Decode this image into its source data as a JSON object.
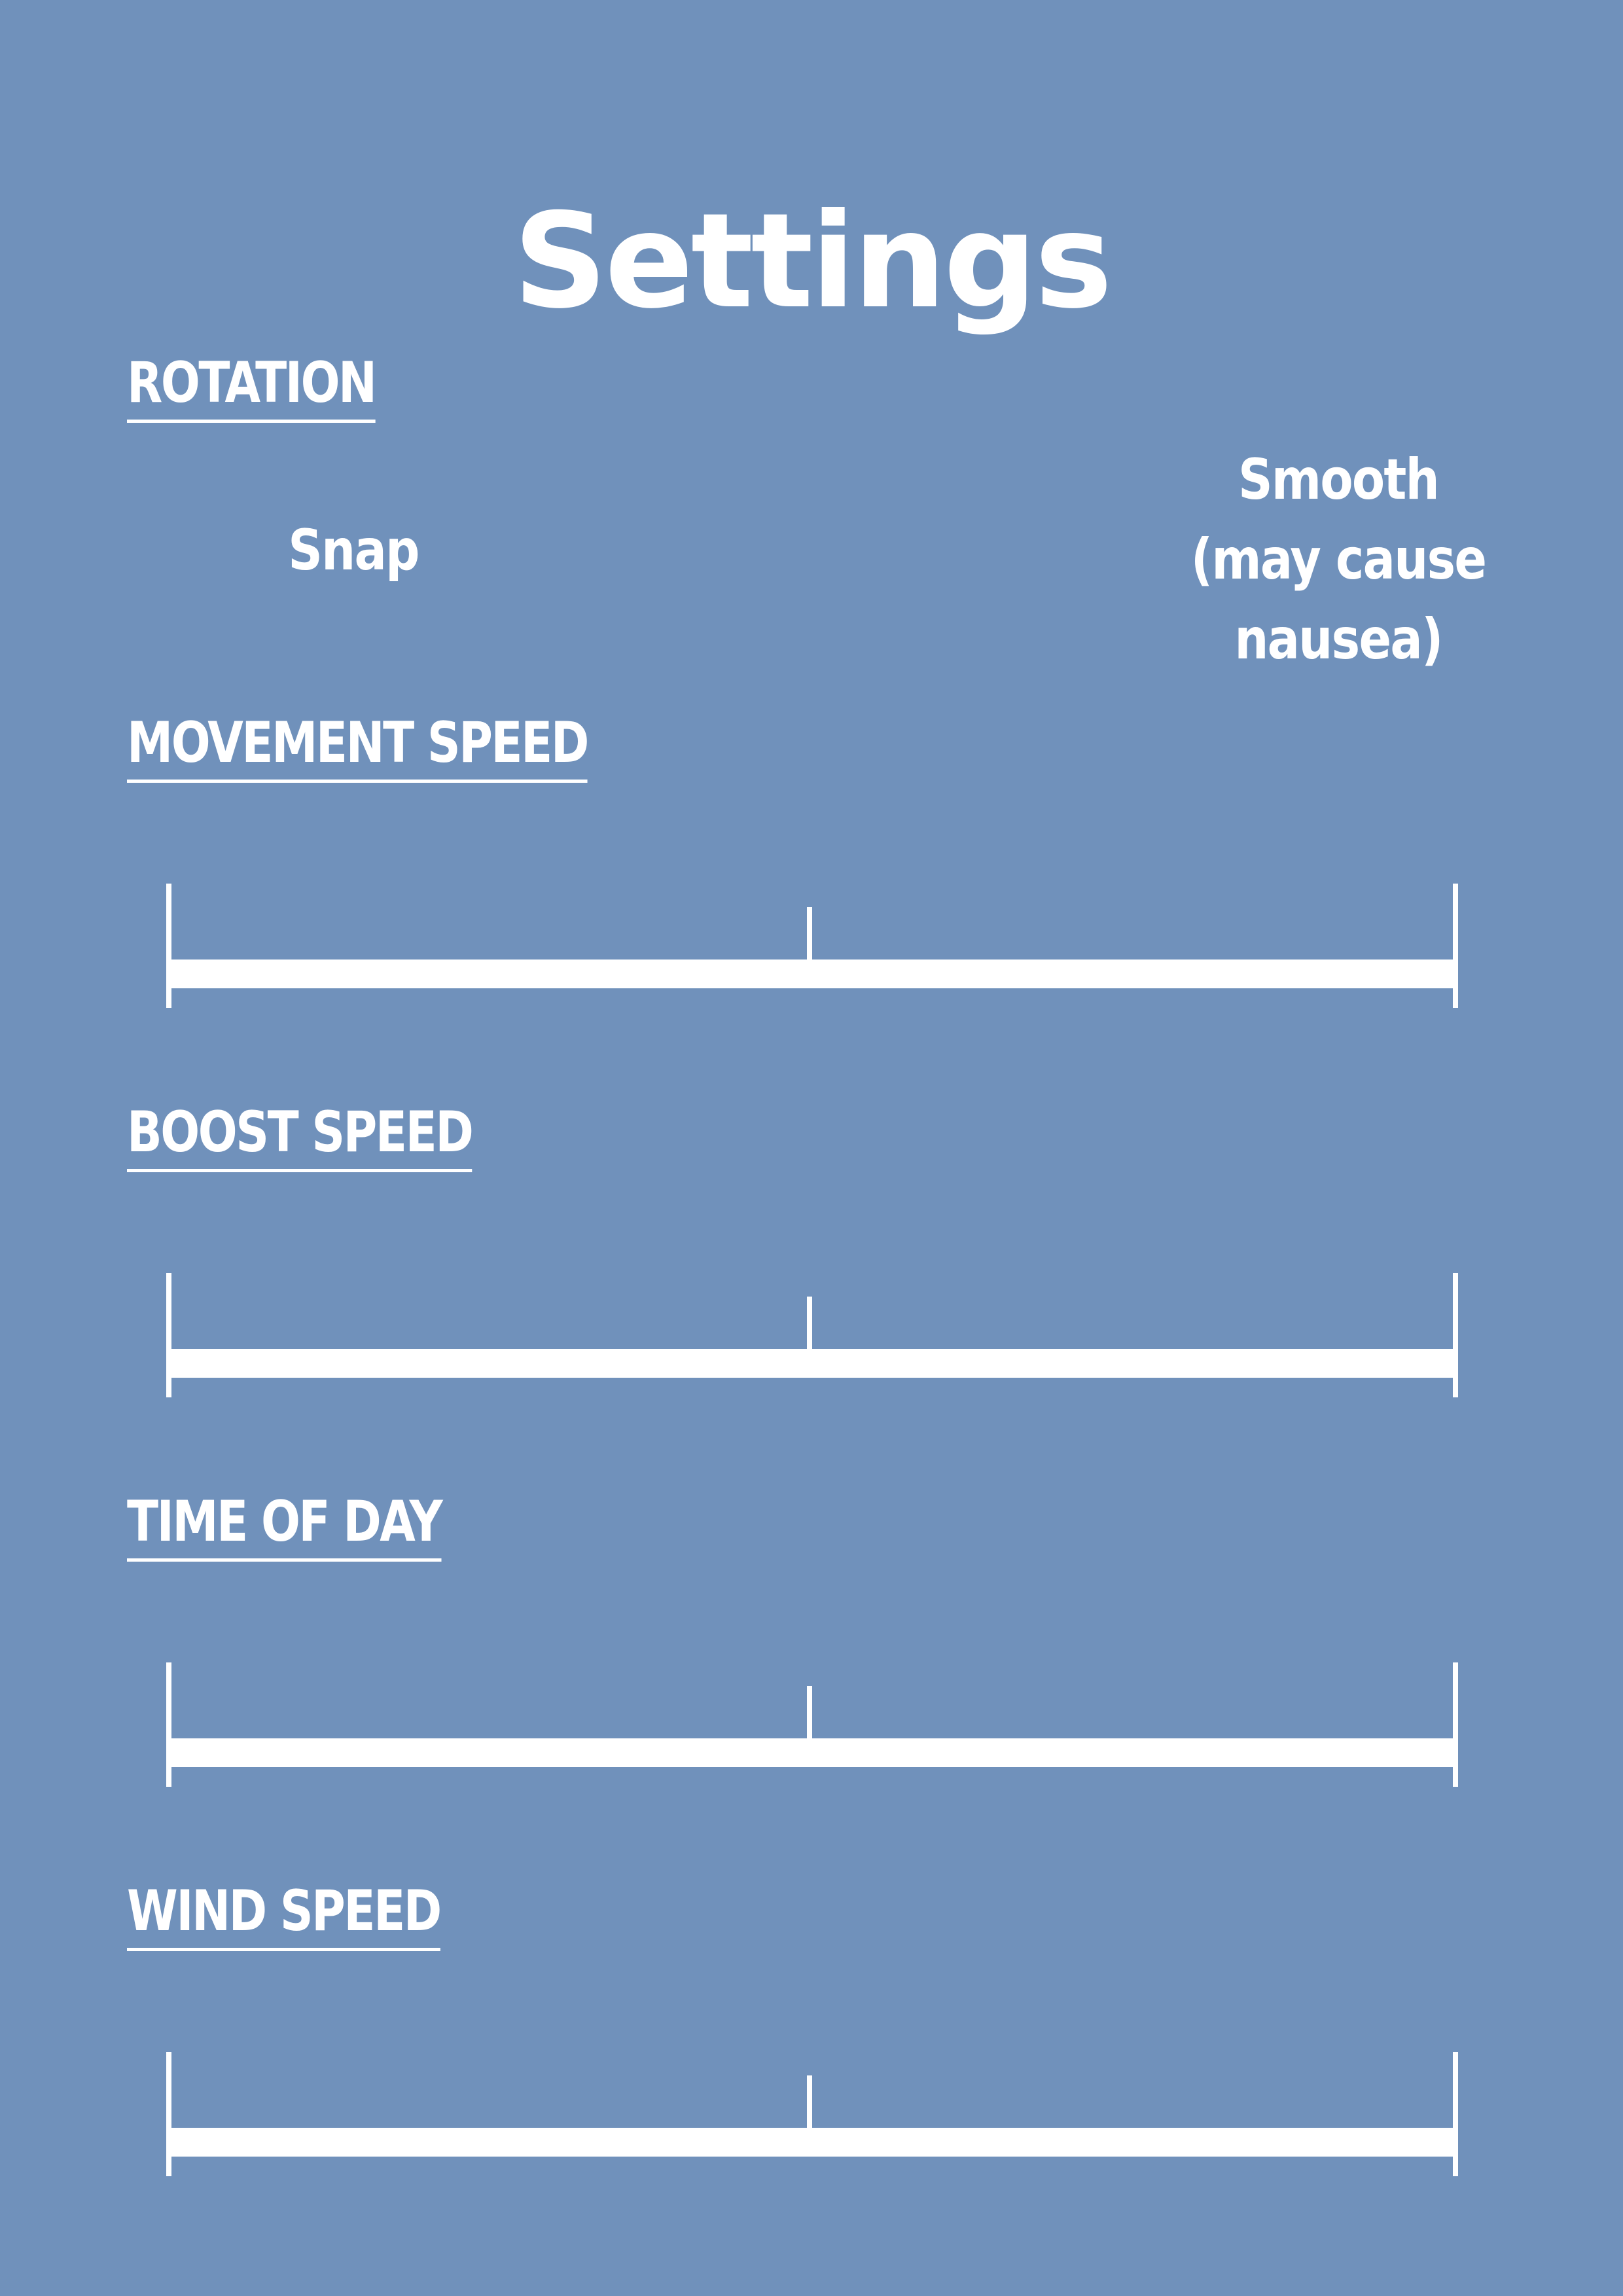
{
  "page": {
    "title": "Settings",
    "background_color": "#7091bb",
    "foreground_color": "#ffffff"
  },
  "sections": {
    "rotation": {
      "label": "ROTATION",
      "options": {
        "snap": "Snap",
        "smooth_line1": "Smooth",
        "smooth_line2": "(may cause",
        "smooth_line3": "nausea)"
      }
    },
    "movement_speed": {
      "label": "MOVEMENT SPEED"
    },
    "boost_speed": {
      "label": "BOOST SPEED"
    },
    "time_of_day": {
      "label": "TIME OF DAY"
    },
    "wind_speed": {
      "label": "WIND SPEED"
    }
  }
}
